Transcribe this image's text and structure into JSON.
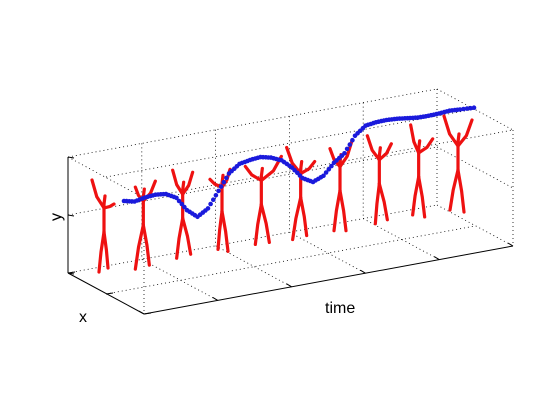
{
  "chart_data": {
    "type": "scatter",
    "projection": "3d",
    "axis_labels": {
      "time": "time",
      "x": "x",
      "y": "y"
    },
    "grid": true,
    "tick_labels_shown": false,
    "colors": {
      "figures": "#ee1111",
      "trajectory": "#1a1adc",
      "axes": "#000000"
    },
    "figure_count": 10,
    "trajectory": {
      "t": [
        0.0,
        0.03,
        0.06,
        0.09,
        0.12,
        0.15,
        0.18,
        0.21,
        0.24,
        0.27,
        0.3,
        0.33,
        0.36,
        0.39,
        0.42,
        0.45,
        0.48,
        0.51,
        0.54,
        0.57,
        0.6,
        0.63,
        0.66,
        0.69,
        0.72,
        0.75,
        0.78,
        0.81,
        0.84,
        0.87,
        0.9,
        0.93,
        0.96,
        1.0
      ],
      "y": [
        0.0,
        -0.04,
        0.0,
        0.02,
        0.0,
        -0.1,
        -0.35,
        -0.5,
        -0.38,
        -0.1,
        0.18,
        0.32,
        0.36,
        0.38,
        0.34,
        0.26,
        0.1,
        -0.12,
        -0.22,
        -0.14,
        0.06,
        0.2,
        0.48,
        0.63,
        0.66,
        0.67,
        0.66,
        0.64,
        0.62,
        0.62,
        0.63,
        0.65,
        0.64,
        0.63
      ]
    }
  }
}
